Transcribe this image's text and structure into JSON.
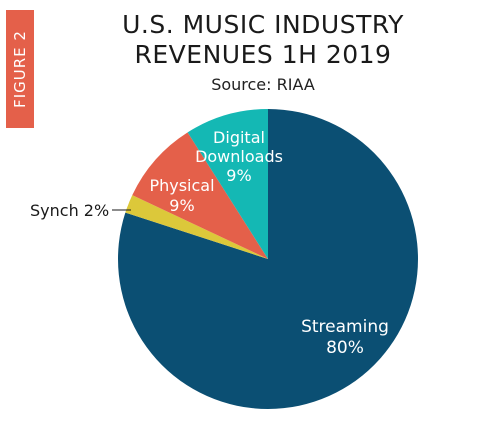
{
  "figure_tag": "FIGURE 2",
  "chart_data": {
    "type": "pie",
    "title_line1": "U.S. MUSIC INDUSTRY",
    "title_line2": "REVENUES 1H 2019",
    "subtitle": "Source: RIAA",
    "slices": [
      {
        "name": "Streaming",
        "value": 80,
        "label": [
          "Streaming",
          "80%"
        ],
        "color": "#0b4f73",
        "label_color": "#ffffff"
      },
      {
        "name": "Synch",
        "value": 2,
        "label": [
          "Synch 2%"
        ],
        "color": "#dcc83a",
        "label_color": "#1a1a1a"
      },
      {
        "name": "Physical",
        "value": 9,
        "label": [
          "Physical",
          "9%"
        ],
        "color": "#e4604a",
        "label_color": "#ffffff"
      },
      {
        "name": "Digital Downloads",
        "value": 9,
        "label": [
          "Digital",
          "Downloads",
          "9%"
        ],
        "color": "#14b8b4",
        "label_color": "#ffffff"
      }
    ]
  }
}
